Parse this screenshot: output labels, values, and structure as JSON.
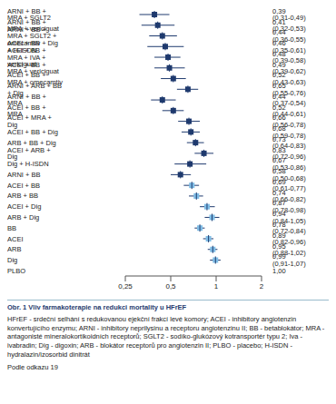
{
  "chart_data": {
    "type": "forest",
    "orientation": "horizontal",
    "log": "x",
    "data_labels": true,
    "categories": [
      "ARNI + BB + MRA + SGLT2",
      "ARNI + BB + MRA + vericiguat",
      "ARNI + BB + MRA + SGLT2 + omecamtiv",
      "ACEI + BB + Dig + H-ISDN",
      "ACEI + BB + MRA + IVA + vericiguat",
      "ACEI + BB + MRA + vericiguat",
      "ACEI + BB + MRA + omecamtiv",
      "ARNI + ARB + BB + Dig",
      "ARNI + BB + MRA",
      "ACEI + BB + MRA",
      "ACEI + MRA + Dig",
      "ACEI + BB + Dig",
      "ARB + BB + Dig",
      "ACEI + ARB + Dig",
      "Dig + H-ISDN",
      "ARNI + BB",
      "ACEI + BB",
      "ARB + BB",
      "ACEI + Dig",
      "ARB + Dig",
      "BB",
      "ACEI",
      "ARB",
      "Dig",
      "PLBO"
    ],
    "values": [
      0.39,
      0.41,
      0.44,
      0.46,
      0.48,
      0.49,
      0.52,
      0.65,
      0.44,
      0.52,
      0.66,
      0.68,
      0.73,
      0.83,
      0.67,
      0.58,
      0.69,
      0.74,
      0.87,
      0.94,
      0.78,
      0.89,
      0.95,
      0.99,
      1.0
    ],
    "lower": [
      0.31,
      0.32,
      0.36,
      0.35,
      0.39,
      0.39,
      0.43,
      0.55,
      0.37,
      0.44,
      0.56,
      0.59,
      0.64,
      0.72,
      0.53,
      0.5,
      0.61,
      0.66,
      0.78,
      0.84,
      0.72,
      0.82,
      0.88,
      0.91,
      null
    ],
    "upper": [
      0.49,
      0.53,
      0.55,
      0.61,
      0.58,
      0.62,
      0.63,
      0.76,
      0.54,
      0.61,
      0.78,
      0.78,
      0.83,
      0.96,
      0.86,
      0.68,
      0.77,
      0.82,
      0.98,
      1.05,
      0.84,
      0.96,
      1.02,
      1.07,
      null
    ],
    "value_labels": [
      "0,39 (0,31-0,49)",
      "0,41 (0,32-0,53)",
      "0,44 (0,36-0,55)",
      "0,46 (0,35-0,61)",
      "0,48 (0,39-0,58)",
      "0,49 (0,39-0,62)",
      "0,52 (0,43-0,63)",
      "0,65 (0,55-0,76)",
      "0,44 (0,37-0,54)",
      "0,52 (0,44-0,61)",
      "0,66 (0,56-0,78)",
      "0,68 (0,59-0,78)",
      "0,73 (0,64-0,83)",
      "0,83 (0,72-0,96)",
      "0,67 (0,53-0,86)",
      "0,58 (0,50-0,68)",
      "0,69 (0,61-0,77)",
      "0,74 (0,66-0,82)",
      "0,87 (0,78-0,98)",
      "0,94 (0,84-1,05)",
      "0,78 (0,72-0,84)",
      "0,89 (0,82-0,96)",
      "0,95 (0,88-1,02)",
      "0,99 (0,91-1,07)",
      "1,00"
    ],
    "colors": [
      "#1f3a6e",
      "#1f3a6e",
      "#1f3a6e",
      "#1f3a6e",
      "#1f3a6e",
      "#1f3a6e",
      "#1f3a6e",
      "#1f3a6e",
      "#1f3a6e",
      "#1f3a6e",
      "#1f3a6e",
      "#1f3a6e",
      "#1f3a6e",
      "#1f3a6e",
      "#1f3a6e",
      "#1f3a6e",
      "#7fbde6",
      "#7fbde6",
      "#7fbde6",
      "#7fbde6",
      "#7fbde6",
      "#7fbde6",
      "#7fbde6",
      "#7fbde6",
      "#7fbde6"
    ],
    "xlim": [
      0.25,
      2
    ],
    "xticks": [
      {
        "value": 0.25,
        "label": "0,25"
      },
      {
        "value": 0.5,
        "label": "0,5"
      },
      1,
      2
    ]
  },
  "caption": {
    "title": "Obr. 1  Vliv farmakoterapie na redukci mortality u HFrEF",
    "note": "HFrEF - srdeční selhání s redukovanou ejekční frakcí levé komory; ACEI - inhibitory angiotenzin konvertujícího enzymu; ARNI - inhibitory neprilysinu a receptoru angiotenzinu II; BB - betablokátor; MRA - antagonisté mineralokortikoidních receptorů; SGLT2 - sodíko-glukózový kotransportér typu 2; Iva - ivabradin; Dig - digoxin; ARB - blokátor receptorů pro angiotenzin II; PLBO - placebo; H-ISDN - hydralazin/izosorbid dinitrát",
    "source": "Podle odkazu 19"
  }
}
